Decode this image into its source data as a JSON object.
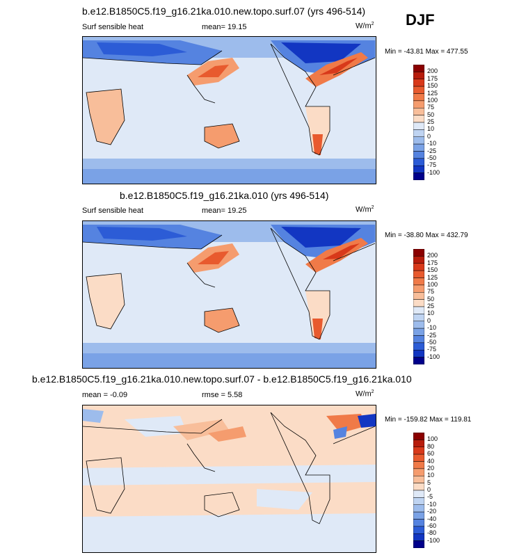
{
  "season": "DJF",
  "panels": [
    {
      "title": "b.e12.B1850C5.f19_g16.21ka.010.new.topo.surf.07 (yrs 496-514)",
      "variable": "Surf sensible heat",
      "stat_label": "mean=",
      "stat_value": "19.15",
      "units": "W/m",
      "units_exp": "2",
      "min_max": "Min = -43.81 Max = 477.55"
    },
    {
      "title": "b.e12.B1850C5.f19_g16.21ka.010 (yrs 496-514)",
      "variable": "Surf sensible heat",
      "stat_label": "mean=",
      "stat_value": "19.25",
      "units": "W/m",
      "units_exp": "2",
      "min_max": "Min = -38.80 Max = 432.79"
    },
    {
      "title": "b.e12.B1850C5.f19_g16.21ka.010.new.topo.surf.07 - b.e12.B1850C5.f19_g16.21ka.010",
      "stat_label": "mean =",
      "stat_value": "-0.09",
      "rmse_label": "rmse =",
      "rmse_value": "5.58",
      "units": "W/m",
      "units_exp": "2",
      "min_max": "Min = -159.82 Max = 119.81"
    }
  ],
  "colorbar_top": {
    "labels": [
      "200",
      "175",
      "150",
      "125",
      "100",
      "75",
      "50",
      "25",
      "10",
      "0",
      "-10",
      "-25",
      "-50",
      "-75",
      "-100"
    ],
    "colors": [
      "#8b0000",
      "#b71c0c",
      "#d8391a",
      "#e85a2e",
      "#f07a48",
      "#f59c6e",
      "#f8be9a",
      "#fbdcc6",
      "#dfe9f7",
      "#bfd4f2",
      "#9dbcec",
      "#7aa2e6",
      "#5583e0",
      "#2c5cd6",
      "#1236c2",
      "#00008b"
    ]
  },
  "colorbar_diff": {
    "labels": [
      "100",
      "80",
      "60",
      "40",
      "20",
      "10",
      "5",
      "0",
      "-5",
      "-10",
      "-20",
      "-40",
      "-60",
      "-80",
      "-100"
    ],
    "colors": [
      "#8b0000",
      "#b71c0c",
      "#d8391a",
      "#e85a2e",
      "#f07a48",
      "#f59c6e",
      "#f8be9a",
      "#fbdcc6",
      "#dfe9f7",
      "#bfd4f2",
      "#9dbcec",
      "#7aa2e6",
      "#5583e0",
      "#2c5cd6",
      "#1236c2",
      "#00008b"
    ]
  },
  "chart_data": [
    {
      "type": "heatmap",
      "title": "b.e12.B1850C5.f19_g16.21ka.010.new.topo.surf.07 (yrs 496-514)",
      "variable": "Surf sensible heat",
      "mean": 19.15,
      "units": "W/m2",
      "min": -43.81,
      "max": 477.55,
      "colorbar_levels": [
        -100,
        -75,
        -50,
        -25,
        -10,
        0,
        10,
        25,
        50,
        75,
        100,
        125,
        150,
        175,
        200
      ]
    },
    {
      "type": "heatmap",
      "title": "b.e12.B1850C5.f19_g16.21ka.010 (yrs 496-514)",
      "variable": "Surf sensible heat",
      "mean": 19.25,
      "units": "W/m2",
      "min": -38.8,
      "max": 432.79,
      "colorbar_levels": [
        -100,
        -75,
        -50,
        -25,
        -10,
        0,
        10,
        25,
        50,
        75,
        100,
        125,
        150,
        175,
        200
      ]
    },
    {
      "type": "heatmap",
      "title": "b.e12.B1850C5.f19_g16.21ka.010.new.topo.surf.07 - b.e12.B1850C5.f19_g16.21ka.010",
      "mean": -0.09,
      "rmse": 5.58,
      "units": "W/m2",
      "min": -159.82,
      "max": 119.81,
      "colorbar_levels": [
        -100,
        -80,
        -60,
        -40,
        -20,
        -10,
        -5,
        0,
        5,
        10,
        20,
        40,
        60,
        80,
        100
      ]
    }
  ]
}
